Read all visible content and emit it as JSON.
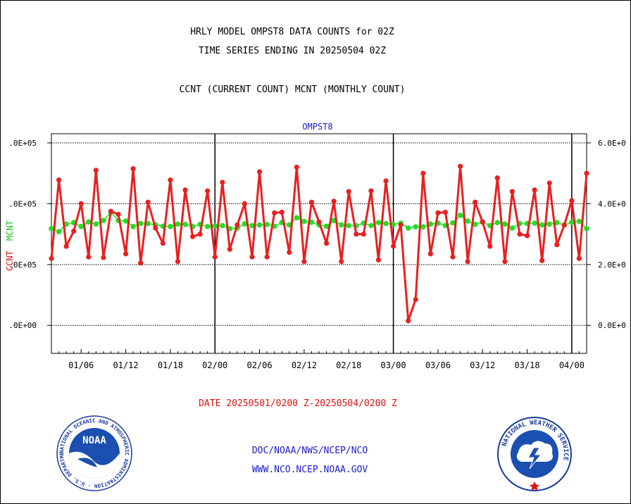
{
  "header": {
    "title_line1": "HRLY MODEL OMPST8 DATA COUNTS for 02Z",
    "title_line2": "TIME SERIES ENDING IN 20250504 02Z",
    "subtitle": "CCNT (CURRENT COUNT) MCNT (MONTHLY COUNT)"
  },
  "footer": {
    "date_range": "DATE 20250501/0200 Z-20250504/0200 Z",
    "link1": "DOC/NOAA/NWS/NCEP/NCO",
    "link2": "WWW.NCO.NCEP.NOAA.GOV"
  },
  "logos": {
    "noaa_text": "NOAA",
    "noaa_ring": "NATIONAL OCEANIC AND ATMOSPHERIC ADMINISTRATION · U.S. DEPARTMENT OF COMMERCE ·",
    "nws_ring": "NATIONAL WEATHER SERVICE"
  },
  "colors": {
    "ccnt": "#e82020",
    "mcnt": "#22e022",
    "label_blue": "#1a1acc",
    "label_red": "#e01010"
  },
  "chart_data": {
    "type": "line",
    "title": "OMPST8",
    "ylabel_left": "CCNT",
    "ylabel_left2": "MCNT",
    "y_ticks_left": [
      ".0E+00",
      ".0E+05",
      ".0E+05",
      ".0E+05"
    ],
    "y_ticks_right": [
      "0.0E+0",
      "2.0E+0",
      "4.0E+0",
      "6.0E+0"
    ],
    "y_tick_values": [
      0,
      200000,
      400000,
      600000
    ],
    "ylim": [
      -92000,
      630000
    ],
    "xlim": [
      0,
      72
    ],
    "x_tick_labels": [
      "01/06",
      "01/12",
      "01/18",
      "02/00",
      "02/06",
      "02/12",
      "02/18",
      "03/00",
      "03/06",
      "03/12",
      "03/18",
      "04/00"
    ],
    "x_tick_values": [
      4,
      10,
      16,
      22,
      28,
      34,
      40,
      46,
      52,
      58,
      64,
      70
    ],
    "day_lines": [
      22,
      46,
      70
    ],
    "grid": true,
    "legend": "none",
    "series": [
      {
        "name": "CCNT",
        "x": [
          0,
          1,
          2,
          3,
          4,
          5,
          6,
          7,
          8,
          9,
          10,
          11,
          12,
          13,
          14,
          15,
          16,
          17,
          18,
          19,
          20,
          21,
          22,
          23,
          24,
          25,
          26,
          27,
          28,
          29,
          30,
          31,
          32,
          33,
          34,
          35,
          36,
          37,
          38,
          39,
          40,
          41,
          42,
          43,
          44,
          45,
          46,
          47,
          48,
          49,
          50,
          51,
          52,
          53,
          54,
          55,
          56,
          57,
          58,
          59,
          60,
          61,
          62,
          63,
          64,
          65,
          66,
          67,
          68,
          69,
          70,
          71,
          72
        ],
        "values": [
          220000,
          478000,
          260000,
          310000,
          400000,
          225000,
          510000,
          223000,
          375000,
          365000,
          235000,
          515000,
          205000,
          405000,
          320000,
          270000,
          478000,
          210000,
          445000,
          292000,
          300000,
          442000,
          225000,
          470000,
          250000,
          330000,
          400000,
          225000,
          505000,
          225000,
          370000,
          372000,
          240000,
          520000,
          210000,
          405000,
          340000,
          270000,
          408000,
          210000,
          440000,
          300000,
          300000,
          442000,
          215000,
          475000,
          260000,
          330000,
          15000,
          85000,
          500000,
          235000,
          370000,
          372000,
          225000,
          523000,
          210000,
          405000,
          340000,
          260000,
          485000,
          210000,
          440000,
          300000,
          295000,
          445000,
          213000,
          468000,
          265000,
          330000,
          410000,
          220000,
          500000
        ]
      },
      {
        "name": "MCNT",
        "x": [
          0,
          1,
          2,
          3,
          4,
          5,
          6,
          7,
          8,
          9,
          10,
          11,
          12,
          13,
          14,
          15,
          16,
          17,
          18,
          19,
          20,
          21,
          22,
          23,
          24,
          25,
          26,
          27,
          28,
          29,
          30,
          31,
          32,
          33,
          34,
          35,
          36,
          37,
          38,
          39,
          40,
          41,
          42,
          43,
          44,
          45,
          46,
          47,
          48,
          49,
          50,
          51,
          52,
          53,
          54,
          55,
          56,
          57,
          58,
          59,
          60,
          61,
          62,
          63,
          64,
          65,
          66,
          67,
          68,
          69,
          70,
          71,
          72
        ],
        "values": [
          318000,
          308000,
          333000,
          338000,
          325000,
          340000,
          333000,
          345000,
          372000,
          345000,
          343000,
          325000,
          335000,
          335000,
          330000,
          326000,
          325000,
          333000,
          332000,
          325000,
          332000,
          325000,
          327000,
          328000,
          318000,
          320000,
          334000,
          328000,
          330000,
          332000,
          326000,
          338000,
          330000,
          354000,
          342000,
          339000,
          330000,
          326000,
          345000,
          330000,
          328000,
          328000,
          336000,
          328000,
          338000,
          335000,
          332000,
          336000,
          320000,
          324000,
          324000,
          333000,
          336000,
          328000,
          337000,
          362000,
          343000,
          332000,
          340000,
          328000,
          338000,
          333000,
          320000,
          335000,
          335000,
          336000,
          330000,
          333000,
          338000,
          330000,
          339000,
          342000,
          318000
        ]
      }
    ]
  }
}
